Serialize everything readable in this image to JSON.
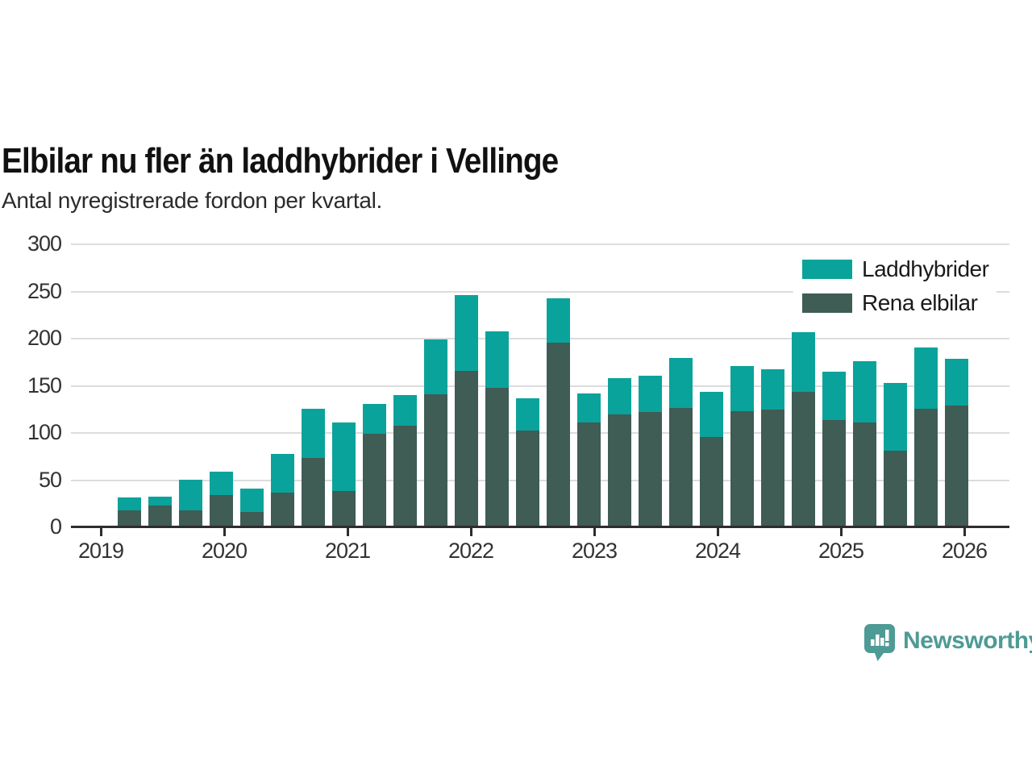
{
  "title": "Elbilar nu fler än laddhybrider i Vellinge",
  "subtitle": "Antal nyregistrerade fordon per kvartal.",
  "branding": {
    "name": "Newsworthy",
    "color": "#4d9b94"
  },
  "chart_data": {
    "type": "bar",
    "stacked": true,
    "title": "Elbilar nu fler än laddhybrider i Vellinge",
    "subtitle": "Antal nyregistrerade fordon per kvartal.",
    "xlabel": "",
    "ylabel": "",
    "ylim": [
      0,
      300
    ],
    "yticks": [
      0,
      50,
      100,
      150,
      200,
      250,
      300
    ],
    "grid": true,
    "legend_position": "top-right",
    "x_year_ticks": [
      "2019",
      "2020",
      "2021",
      "2022",
      "2023",
      "2024",
      "2025",
      "2026"
    ],
    "categories": [
      "2019 Q1",
      "2019 Q2",
      "2019 Q3",
      "2019 Q4",
      "2020 Q1",
      "2020 Q2",
      "2020 Q3",
      "2020 Q4",
      "2021 Q1",
      "2021 Q2",
      "2021 Q3",
      "2021 Q4",
      "2022 Q1",
      "2022 Q2",
      "2022 Q3",
      "2022 Q4",
      "2023 Q1",
      "2023 Q2",
      "2023 Q3",
      "2023 Q4",
      "2024 Q1",
      "2024 Q2",
      "2024 Q3",
      "2024 Q4",
      "2025 Q1",
      "2025 Q2",
      "2025 Q3",
      "2025 Q4"
    ],
    "series": [
      {
        "name": "Rena elbilar",
        "color": "#3f5c55",
        "values": [
          17,
          22,
          17,
          33,
          15,
          36,
          73,
          38,
          98,
          107,
          140,
          165,
          147,
          102,
          195,
          110,
          119,
          121,
          126,
          95,
          122,
          124,
          143,
          113,
          110,
          80,
          125,
          128
        ]
      },
      {
        "name": "Laddhybrider",
        "color": "#0aa39b",
        "values": [
          14,
          10,
          33,
          25,
          25,
          41,
          52,
          72,
          32,
          32,
          58,
          80,
          60,
          34,
          47,
          31,
          38,
          39,
          53,
          48,
          48,
          43,
          63,
          51,
          65,
          72,
          65,
          50
        ]
      }
    ],
    "totals": [
      31,
      32,
      50,
      58,
      40,
      77,
      125,
      110,
      130,
      139,
      198,
      245,
      207,
      136,
      242,
      141,
      157,
      160,
      179,
      143,
      170,
      167,
      206,
      164,
      175,
      152,
      190,
      178
    ]
  },
  "legend": {
    "items": [
      {
        "label": "Laddhybrider",
        "color": "#0aa39b"
      },
      {
        "label": "Rena elbilar",
        "color": "#3f5c55"
      }
    ]
  }
}
